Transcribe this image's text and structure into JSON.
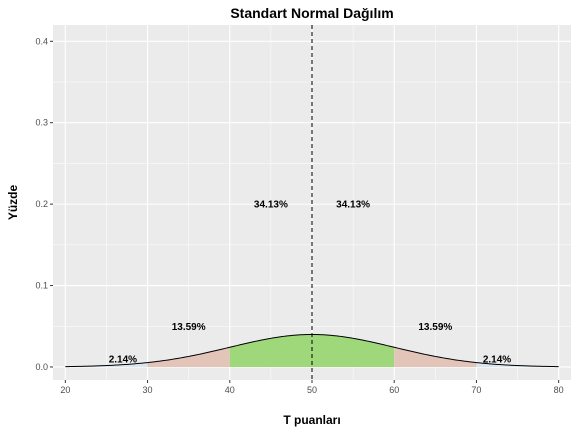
{
  "chart_data": {
    "type": "area",
    "title": "Standart Normal Dağılım",
    "xlabel": "T puanları",
    "ylabel": "Yüzde",
    "xlim": [
      18.5,
      81.5
    ],
    "ylim": [
      -0.016,
      0.42
    ],
    "x_ticks": [
      20,
      30,
      40,
      50,
      60,
      70,
      80
    ],
    "y_ticks": [
      0.0,
      0.1,
      0.2,
      0.3,
      0.4
    ],
    "y_tick_labels": [
      "0.0",
      "0.1",
      "0.2",
      "0.3",
      "0.4"
    ],
    "distribution": {
      "mean": 50,
      "sd": 10,
      "x_range": [
        20,
        80
      ]
    },
    "bands": [
      {
        "from": 20,
        "to": 30,
        "color": "#d9e6f0",
        "label": "2.14%",
        "label_x": 27,
        "label_y": 0.01
      },
      {
        "from": 30,
        "to": 40,
        "color": "#e2c4b8",
        "label": "13.59%",
        "label_x": 35,
        "label_y": 0.05
      },
      {
        "from": 40,
        "to": 50,
        "color": "#9ed87a",
        "label": "34.13%",
        "label_x": 45,
        "label_y": 0.2
      },
      {
        "from": 50,
        "to": 60,
        "color": "#9ed87a",
        "label": "34.13%",
        "label_x": 55,
        "label_y": 0.2
      },
      {
        "from": 60,
        "to": 70,
        "color": "#e2c4b8",
        "label": "13.59%",
        "label_x": 65,
        "label_y": 0.05
      },
      {
        "from": 70,
        "to": 80,
        "color": "#d9e6f0",
        "label": "2.14%",
        "label_x": 72.5,
        "label_y": 0.01
      }
    ],
    "vline": {
      "x": 50,
      "style": "dashed"
    },
    "grid": true,
    "panel_background": "#ebebeb",
    "grid_color": "#ffffff"
  }
}
